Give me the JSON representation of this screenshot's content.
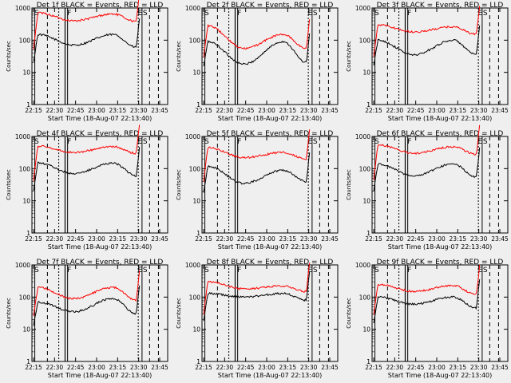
{
  "chart_data": [
    {
      "type": "line",
      "title": "Det 1f BLACK = Events, RED = LLD",
      "ylabel": "Counts/sec",
      "xlabel": "Start Time (18-Aug-07 22:13:40)",
      "x_ticks": [
        "22:15",
        "22:30",
        "22:45",
        "23:00",
        "23:15",
        "23:30",
        "23:45"
      ],
      "y_ticks": [
        "1",
        "10",
        "100",
        "1000"
      ],
      "y_scale": "log",
      "ylim": [
        1,
        1000
      ],
      "markers": [
        "S",
        "F",
        "E",
        "S"
      ],
      "series": [
        {
          "name": "BLACK",
          "color": "#000000",
          "shape": {
            "start": 150,
            "dip": 70,
            "bump": 150,
            "end": 60
          }
        },
        {
          "name": "RED",
          "color": "#ff0000",
          "shape": {
            "start": 700,
            "dip": 400,
            "bump": 650,
            "end": 380
          }
        }
      ]
    },
    {
      "type": "line",
      "title": "Det 2f BLACK = Events, RED = LLD",
      "ylabel": "Counts/sec",
      "xlabel": "Start Time (18-Aug-07 22:13:40)",
      "x_ticks": [
        "22:15",
        "22:30",
        "22:45",
        "23:00",
        "23:15",
        "23:30",
        "23:45"
      ],
      "y_ticks": [
        "1",
        "10",
        "100",
        "1000"
      ],
      "y_scale": "log",
      "ylim": [
        1,
        1000
      ],
      "markers": [
        "S",
        "F",
        "E",
        "S"
      ],
      "series": [
        {
          "name": "BLACK",
          "color": "#000000",
          "shape": {
            "start": 90,
            "dip": 18,
            "bump": 90,
            "end": 20
          }
        },
        {
          "name": "RED",
          "color": "#ff0000",
          "shape": {
            "start": 280,
            "dip": 55,
            "bump": 150,
            "end": 55
          }
        }
      ]
    },
    {
      "type": "line",
      "title": "Det 3f BLACK = Events, RED = LLD",
      "ylabel": "Counts/sec",
      "xlabel": "Start Time (18-Aug-07 22:13:40)",
      "x_ticks": [
        "22:15",
        "22:30",
        "22:45",
        "23:00",
        "23:15",
        "23:30",
        "23:45"
      ],
      "y_ticks": [
        "1",
        "10",
        "100",
        "1000"
      ],
      "y_scale": "log",
      "ylim": [
        1,
        1000
      ],
      "markers": [
        "S",
        "F",
        "E",
        "S"
      ],
      "series": [
        {
          "name": "BLACK",
          "color": "#000000",
          "shape": {
            "start": 100,
            "dip": 35,
            "bump": 100,
            "end": 35
          }
        },
        {
          "name": "RED",
          "color": "#ff0000",
          "shape": {
            "start": 300,
            "dip": 180,
            "bump": 260,
            "end": 150
          }
        }
      ]
    },
    {
      "type": "line",
      "title": "Det 4f BLACK = Events, RED = LLD",
      "ylabel": "Counts/sec",
      "xlabel": "Start Time (18-Aug-07 22:13:40)",
      "x_ticks": [
        "22:15",
        "22:30",
        "22:45",
        "23:00",
        "23:15",
        "23:30",
        "23:45"
      ],
      "y_ticks": [
        "1",
        "10",
        "100",
        "1000"
      ],
      "y_scale": "log",
      "ylim": [
        1,
        1000
      ],
      "markers": [
        "S",
        "F",
        "E",
        "S"
      ],
      "series": [
        {
          "name": "BLACK",
          "color": "#000000",
          "shape": {
            "start": 150,
            "dip": 70,
            "bump": 150,
            "end": 60
          }
        },
        {
          "name": "RED",
          "color": "#ff0000",
          "shape": {
            "start": 500,
            "dip": 320,
            "bump": 480,
            "end": 300
          }
        }
      ]
    },
    {
      "type": "line",
      "title": "Det 5f BLACK = Events, RED = LLD",
      "ylabel": "Counts/sec",
      "xlabel": "Start Time (18-Aug-07 22:13:40)",
      "x_ticks": [
        "22:15",
        "22:30",
        "22:45",
        "23:00",
        "23:15",
        "23:30",
        "23:45"
      ],
      "y_ticks": [
        "1",
        "10",
        "100",
        "1000"
      ],
      "y_scale": "log",
      "ylim": [
        1,
        1000
      ],
      "markers": [
        "S",
        "F",
        "E",
        "S"
      ],
      "series": [
        {
          "name": "BLACK",
          "color": "#000000",
          "shape": {
            "start": 120,
            "dip": 35,
            "bump": 90,
            "end": 40
          }
        },
        {
          "name": "RED",
          "color": "#ff0000",
          "shape": {
            "start": 450,
            "dip": 220,
            "bump": 320,
            "end": 200
          }
        }
      ]
    },
    {
      "type": "line",
      "title": "Det 6f BLACK = Events, RED = LLD",
      "ylabel": "Counts/sec",
      "xlabel": "Start Time (18-Aug-07 22:13:40)",
      "x_ticks": [
        "22:15",
        "22:30",
        "22:45",
        "23:00",
        "23:15",
        "23:30",
        "23:45"
      ],
      "y_ticks": [
        "1",
        "10",
        "100",
        "1000"
      ],
      "y_scale": "log",
      "ylim": [
        1,
        1000
      ],
      "markers": [
        "S",
        "F",
        "E",
        "S"
      ],
      "series": [
        {
          "name": "BLACK",
          "color": "#000000",
          "shape": {
            "start": 140,
            "dip": 60,
            "bump": 140,
            "end": 55
          }
        },
        {
          "name": "RED",
          "color": "#ff0000",
          "shape": {
            "start": 550,
            "dip": 300,
            "bump": 480,
            "end": 280
          }
        }
      ]
    },
    {
      "type": "line",
      "title": "Det 7f BLACK = Events, RED = LLD",
      "ylabel": "Counts/sec",
      "xlabel": "Start Time (18-Aug-07 22:13:40)",
      "x_ticks": [
        "22:15",
        "22:30",
        "22:45",
        "23:00",
        "23:15",
        "23:30",
        "23:45"
      ],
      "y_ticks": [
        "1",
        "10",
        "100",
        "1000"
      ],
      "y_scale": "log",
      "ylim": [
        1,
        1000
      ],
      "markers": [
        "S",
        "F",
        "E",
        "S"
      ],
      "series": [
        {
          "name": "BLACK",
          "color": "#000000",
          "shape": {
            "start": 70,
            "dip": 35,
            "bump": 90,
            "end": 30
          }
        },
        {
          "name": "RED",
          "color": "#ff0000",
          "shape": {
            "start": 200,
            "dip": 90,
            "bump": 200,
            "end": 80
          }
        }
      ]
    },
    {
      "type": "line",
      "title": "Det 8f BLACK = Events, RED = LLD",
      "ylabel": "Counts/sec",
      "xlabel": "Start Time (18-Aug-07 22:13:40)",
      "x_ticks": [
        "22:15",
        "22:30",
        "22:45",
        "23:00",
        "23:15",
        "23:30",
        "23:45"
      ],
      "y_ticks": [
        "1",
        "10",
        "100",
        "1000"
      ],
      "y_scale": "log",
      "ylim": [
        1,
        1000
      ],
      "markers": [
        "S",
        "F",
        "E",
        "S"
      ],
      "series": [
        {
          "name": "BLACK",
          "color": "#000000",
          "shape": {
            "start": 130,
            "dip": 100,
            "bump": 130,
            "end": 80
          }
        },
        {
          "name": "RED",
          "color": "#ff0000",
          "shape": {
            "start": 300,
            "dip": 180,
            "bump": 220,
            "end": 150
          }
        }
      ]
    },
    {
      "type": "line",
      "title": "Det 9f BLACK = Events, RED = LLD",
      "ylabel": "Counts/sec",
      "xlabel": "Start Time (18-Aug-07 22:13:40)",
      "x_ticks": [
        "22:15",
        "22:30",
        "22:45",
        "23:00",
        "23:15",
        "23:30",
        "23:45"
      ],
      "y_ticks": [
        "1",
        "10",
        "100",
        "1000"
      ],
      "y_scale": "log",
      "ylim": [
        1,
        1000
      ],
      "markers": [
        "S",
        "F",
        "E",
        "S"
      ],
      "series": [
        {
          "name": "BLACK",
          "color": "#000000",
          "shape": {
            "start": 100,
            "dip": 60,
            "bump": 100,
            "end": 45
          }
        },
        {
          "name": "RED",
          "color": "#ff0000",
          "shape": {
            "start": 250,
            "dip": 150,
            "bump": 230,
            "end": 120
          }
        }
      ]
    }
  ]
}
